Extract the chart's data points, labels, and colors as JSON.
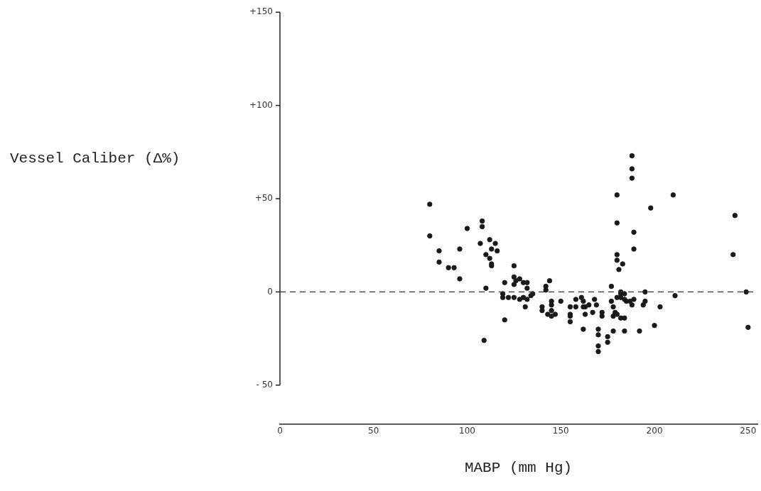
{
  "chart_data": {
    "type": "scatter",
    "xlabel": "MABP (mm Hg)",
    "ylabel": "Vessel Caliber (Δ%)",
    "x": [
      80,
      80,
      108,
      108,
      100,
      85,
      96,
      85,
      90,
      93,
      96,
      107,
      110,
      109,
      112,
      113,
      110,
      112,
      113,
      115,
      116,
      113,
      125,
      120,
      125,
      125,
      126,
      128,
      130,
      132,
      132,
      119,
      119,
      122,
      125,
      128,
      130,
      132,
      134,
      135,
      131,
      120,
      142,
      142,
      144,
      140,
      140,
      143,
      145,
      147,
      145,
      145,
      145,
      150,
      155,
      155,
      155,
      155,
      158,
      158,
      161,
      162,
      162,
      163,
      165,
      163,
      162,
      168,
      169,
      167,
      170,
      170,
      170,
      170,
      172,
      172,
      175,
      175,
      177,
      177,
      178,
      178,
      178,
      180,
      182,
      184,
      184,
      188,
      188,
      188,
      210,
      180,
      198,
      180,
      189,
      189,
      180,
      180,
      183,
      181,
      195,
      182,
      187,
      195,
      211,
      182,
      185,
      189,
      194,
      188,
      203,
      179,
      180,
      182,
      184,
      200,
      184,
      192,
      243,
      242,
      249,
      250
    ],
    "values": [
      30,
      47,
      38,
      35,
      34,
      22,
      23,
      16,
      13,
      13,
      7,
      26,
      2,
      -26,
      28,
      23,
      20,
      18,
      15,
      26,
      22,
      14,
      14,
      5,
      8,
      4,
      6,
      7,
      5,
      5,
      2,
      -1,
      -3,
      -3,
      -3,
      -4,
      -3,
      -4,
      -2,
      -1,
      -8,
      -15,
      3,
      1,
      6,
      -8,
      -10,
      -12,
      -13,
      -12,
      -10,
      -7,
      -5,
      -5,
      -8,
      -12,
      -13,
      -16,
      -4,
      -8,
      -3,
      -5,
      -8,
      -8,
      -7,
      -12,
      -20,
      -4,
      -7,
      -11,
      -20,
      -23,
      -29,
      -32,
      -11,
      -13,
      -24,
      -27,
      3,
      -5,
      -8,
      -13,
      -21,
      -3,
      -1,
      -1,
      -4,
      73,
      66,
      61,
      52,
      52,
      45,
      37,
      32,
      23,
      20,
      17,
      15,
      12,
      0,
      0,
      -5,
      -5,
      -2,
      -3,
      -5,
      -4,
      -7,
      -7,
      -8,
      -11,
      -12,
      -14,
      -14,
      -18,
      -21,
      -21,
      41,
      20,
      0,
      -19
    ],
    "color": "#1a1a1a",
    "marker": "circle",
    "xlim": [
      0,
      255
    ],
    "ylim": [
      -71,
      150
    ],
    "xticks": [
      0,
      50,
      100,
      150,
      200,
      250
    ],
    "yticks": [
      {
        "value": -50,
        "label": "- 50"
      },
      0,
      {
        "value": 50,
        "label": "+50"
      },
      {
        "value": 100,
        "label": "+100"
      },
      {
        "value": 150,
        "label": "+150"
      }
    ],
    "ref_lines": [
      {
        "axis": "y",
        "value": 0,
        "line_style": "dashed",
        "color": "#333333"
      }
    ],
    "grid": false,
    "legend": false
  }
}
